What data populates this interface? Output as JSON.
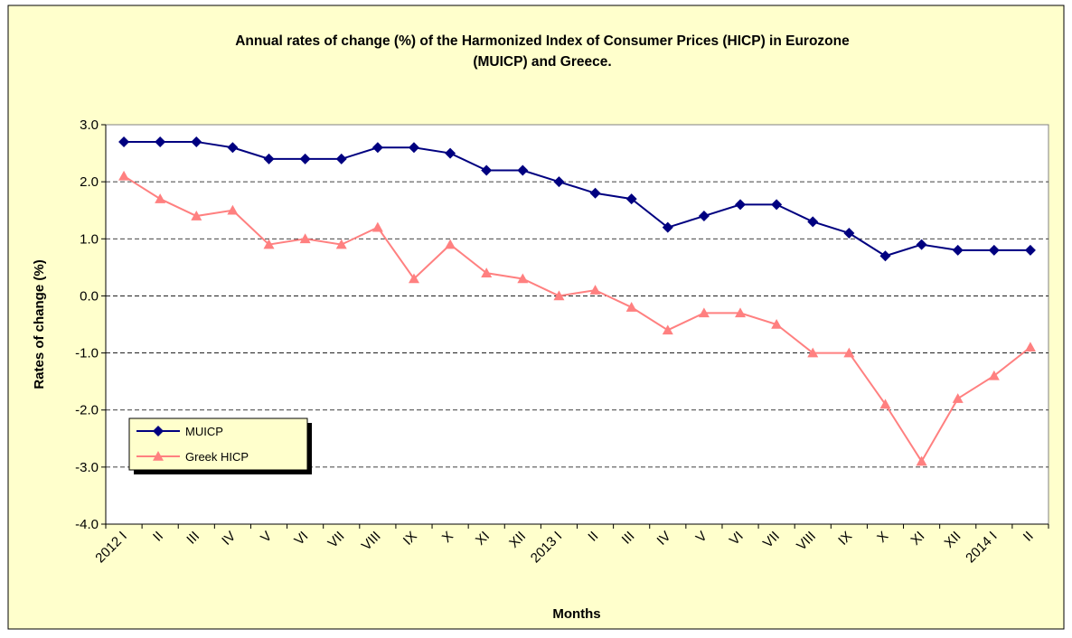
{
  "chart_data": {
    "type": "line",
    "title": "Annual rates of change (%) of the Harmonized Index of Consumer Prices (HICP) in Eurozone (MUICP) and Greece.",
    "x_label": "Months",
    "y_label": "Rates of change (%)",
    "categories": [
      "2012 I",
      "II",
      "III",
      "IV",
      "V",
      "VI",
      "VII",
      "VIII",
      "IX",
      "X",
      "XI",
      "XII",
      "2013 I",
      "II",
      "III",
      "IV",
      "V",
      "VI",
      "VII",
      "VIII",
      "IX",
      "X",
      "XI",
      "XII",
      "2014 I",
      "II"
    ],
    "series": [
      {
        "name": "MUICP",
        "color": "#000080",
        "marker": "diamond",
        "values": [
          2.7,
          2.7,
          2.7,
          2.6,
          2.4,
          2.4,
          2.4,
          2.6,
          2.6,
          2.5,
          2.2,
          2.2,
          2.0,
          1.8,
          1.7,
          1.2,
          1.4,
          1.6,
          1.6,
          1.3,
          1.1,
          0.7,
          0.9,
          0.8,
          0.8,
          0.8
        ]
      },
      {
        "name": "Greek HICP",
        "color": "#FF8080",
        "marker": "triangle",
        "values": [
          2.1,
          1.7,
          1.4,
          1.5,
          0.9,
          1.0,
          0.9,
          1.2,
          0.3,
          0.9,
          0.4,
          0.3,
          0.0,
          0.1,
          -0.2,
          -0.6,
          -0.3,
          -0.3,
          -0.5,
          -1.0,
          -1.0,
          -1.9,
          -2.9,
          -1.8,
          -1.4,
          -0.9
        ]
      }
    ],
    "ylim": [
      -4,
      3
    ],
    "yticks": [
      {
        "value": 3,
        "label": "3.0"
      },
      {
        "value": 2,
        "label": "2.0"
      },
      {
        "value": 1,
        "label": "1.0"
      },
      {
        "value": 0,
        "label": "0.0"
      },
      {
        "value": -1,
        "label": "-1.0"
      },
      {
        "value": -2,
        "label": "-2.0"
      },
      {
        "value": -3,
        "label": "-3.0"
      },
      {
        "value": -4,
        "label": "-4.0"
      }
    ],
    "grid": true,
    "legend": "lower left"
  }
}
